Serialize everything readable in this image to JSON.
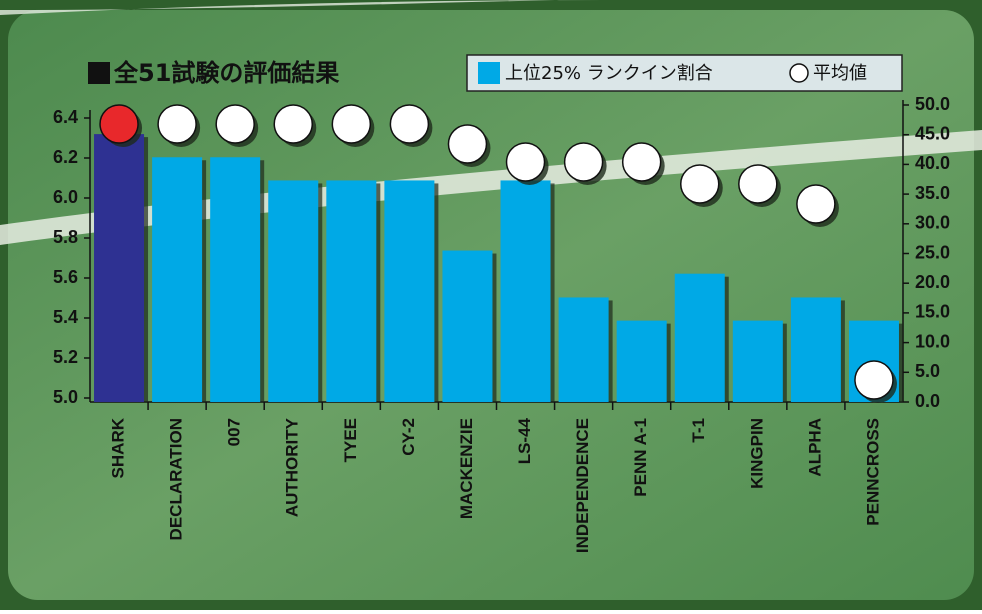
{
  "chart_data": {
    "type": "bar-dot",
    "title": "全51試験の評価結果",
    "categories": [
      "SHARK",
      "DECLARATION",
      "007",
      "AUTHORITY",
      "TYEE",
      "CY-2",
      "MACKENZIE",
      "LS-44",
      "INDEPENDENCE",
      "PENN A-1",
      "T-1",
      "KINGPIN",
      "ALPHA",
      "PENNCROSS"
    ],
    "series": [
      {
        "name": "上位25% ランクイン割合",
        "axis": "y2",
        "color": "#00a9e6",
        "colors": [
          "#2e3192",
          "#00a9e6",
          "#00a9e6",
          "#00a9e6",
          "#00a9e6",
          "#00a9e6",
          "#00a9e6",
          "#00a9e6",
          "#00a9e6",
          "#00a9e6",
          "#00a9e6",
          "#00a9e6",
          "#00a9e6",
          "#00a9e6"
        ],
        "values": [
          45.1,
          41.2,
          41.2,
          37.3,
          37.3,
          37.3,
          25.5,
          37.3,
          17.6,
          13.7,
          21.6,
          13.7,
          17.6,
          13.7
        ]
      },
      {
        "name": "平均値",
        "color": "#ffffff",
        "colors": [
          "#e8282b",
          "#ffffff",
          "#ffffff",
          "#ffffff",
          "#ffffff",
          "#ffffff",
          "#ffffff",
          "#ffffff",
          "#ffffff",
          "#ffffff",
          "#ffffff",
          "#ffffff",
          "#ffffff",
          "#ffffff"
        ],
        "values": [
          6.37,
          6.37,
          6.37,
          6.37,
          6.37,
          6.37,
          6.27,
          6.18,
          6.18,
          6.18,
          6.07,
          6.07,
          5.97,
          5.09
        ]
      }
    ],
    "ylim": [
      5.0,
      6.4
    ],
    "yticks": [
      {
        "value": 5,
        "label": "5.0"
      },
      5.2,
      5.4,
      5.6,
      5.8,
      {
        "value": 6,
        "label": "6.0"
      },
      6.2,
      6.4
    ],
    "y2lim": [
      0,
      50
    ],
    "y2ticks": [
      {
        "value": 0,
        "label": "0.0"
      },
      {
        "value": 5,
        "label": "5.0"
      },
      {
        "value": 10,
        "label": "10.0"
      },
      {
        "value": 15,
        "label": "15.0"
      },
      {
        "value": 20,
        "label": "20.0"
      },
      {
        "value": 25,
        "label": "25.0"
      },
      {
        "value": 30,
        "label": "30.0"
      },
      {
        "value": 35,
        "label": "35.0"
      },
      {
        "value": 40,
        "label": "40.0"
      },
      {
        "value": 45,
        "label": "45.0"
      },
      {
        "value": 50,
        "label": "50.0"
      }
    ]
  }
}
